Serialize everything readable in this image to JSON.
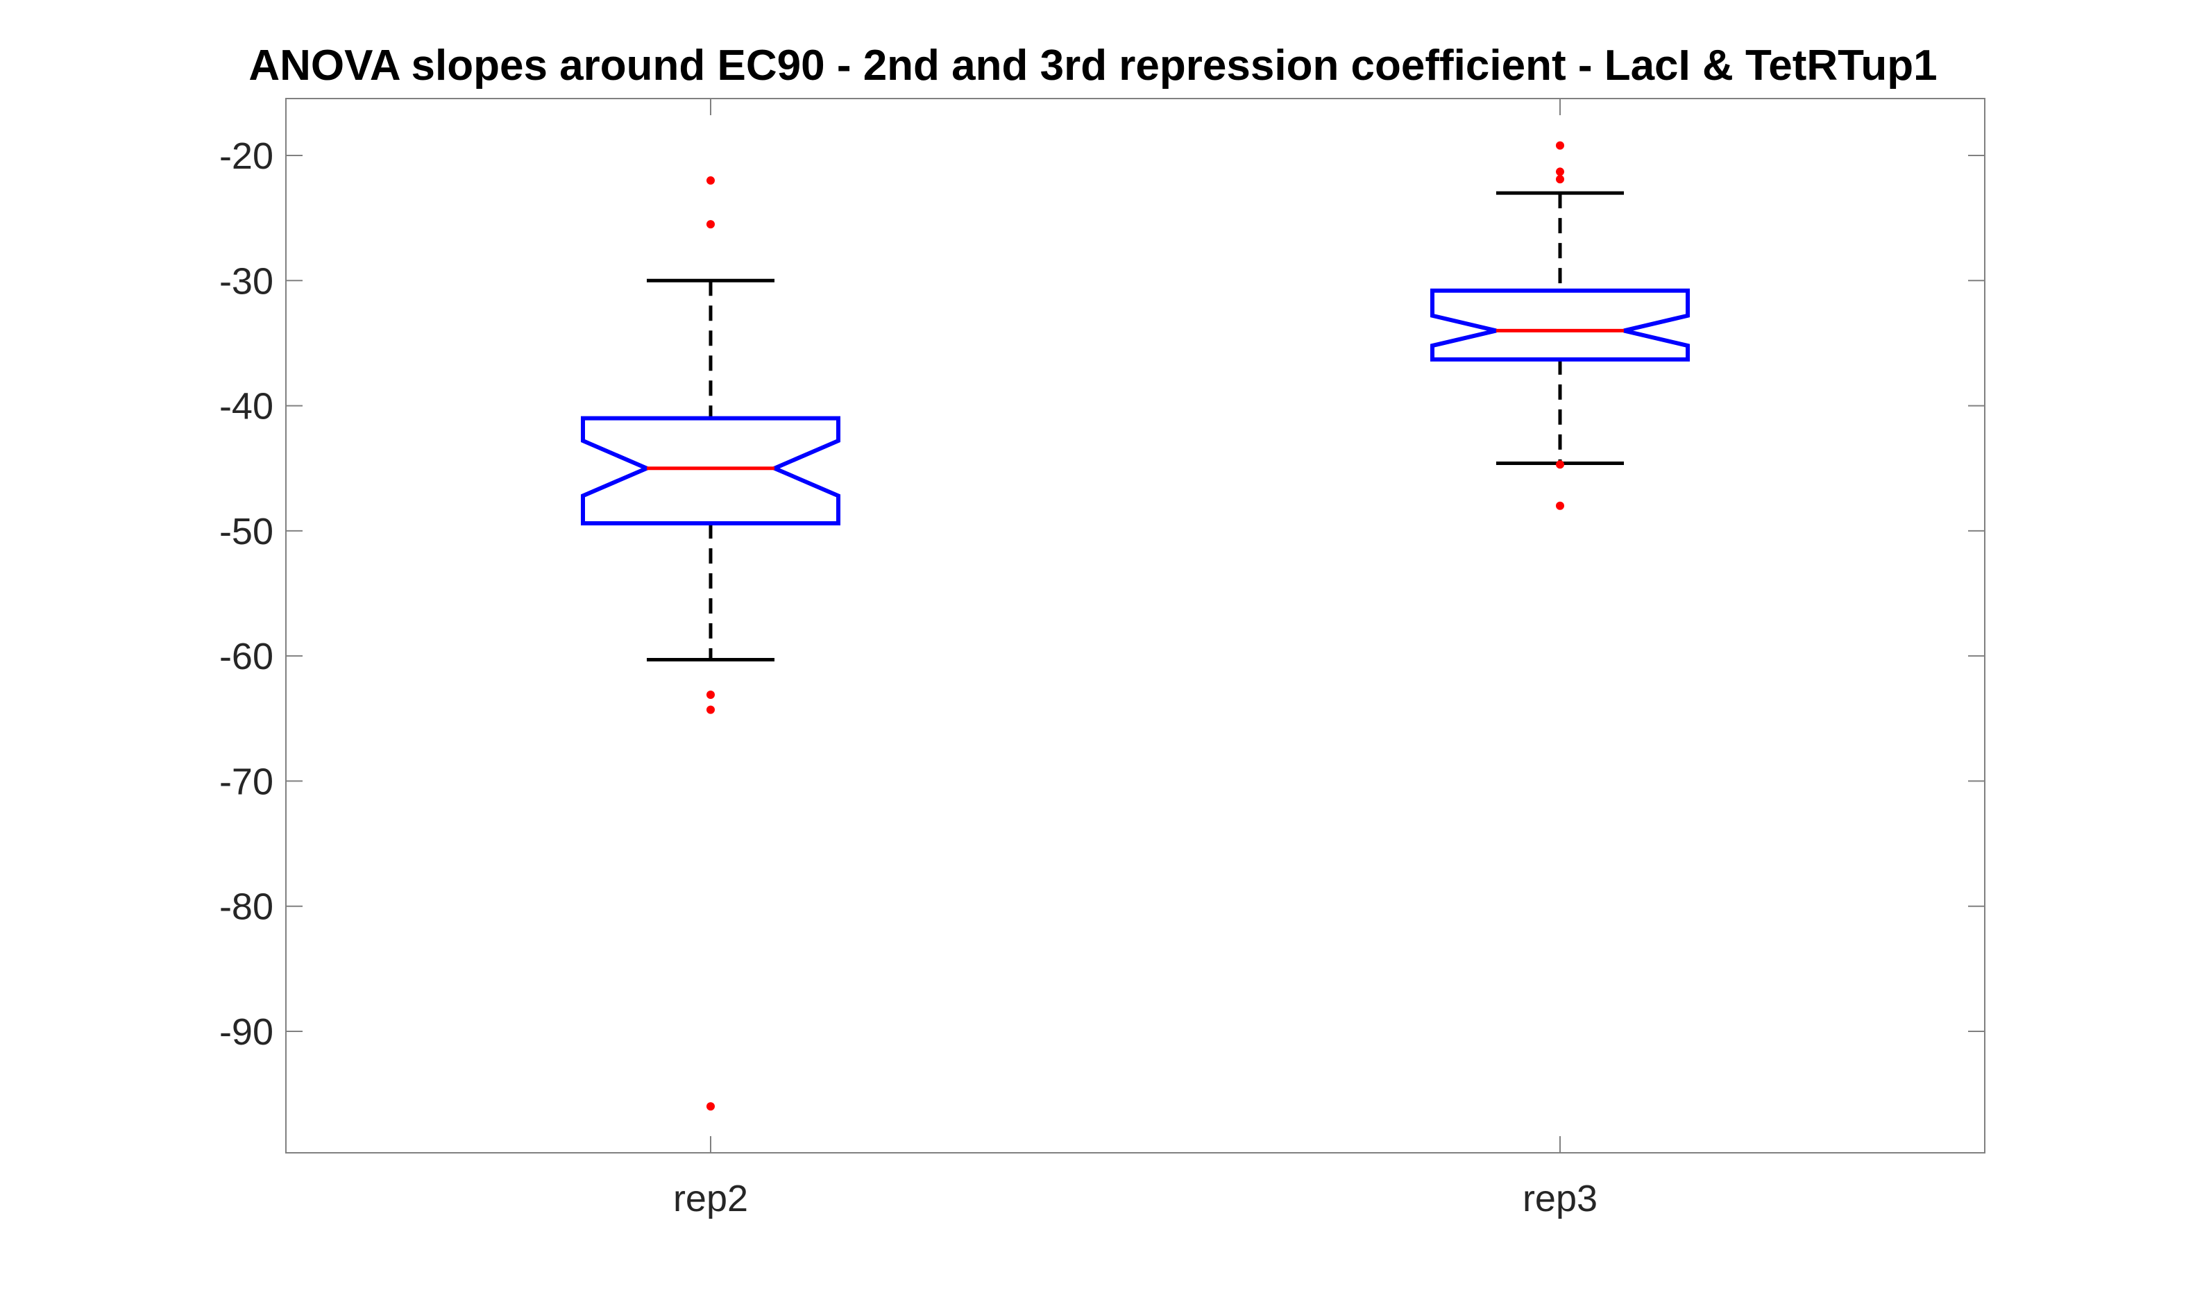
{
  "chart_data": {
    "type": "box",
    "title": "ANOVA slopes around EC90 - 2nd and 3rd repression coefficient - LacI & TetRTup1",
    "xlabel": "",
    "ylabel": "",
    "categories": [
      "rep2",
      "rep3"
    ],
    "ylim": [
      -100,
      -15
    ],
    "yticks": [
      -20,
      -30,
      -40,
      -50,
      -60,
      -70,
      -80,
      -90
    ],
    "grid": false,
    "notched": true,
    "boxes": [
      {
        "category": "rep2",
        "whisker_high": -30,
        "q3": -41,
        "notch_high": -42.8,
        "median": -45,
        "notch_low": -47.2,
        "q1": -49.4,
        "whisker_low": -60.3,
        "outliers": [
          -22,
          -25.5,
          -63.1,
          -64.3,
          -96
        ]
      },
      {
        "category": "rep3",
        "whisker_high": -23,
        "q3": -30.8,
        "notch_high": -32.8,
        "median": -34,
        "notch_low": -35.2,
        "q1": -36.3,
        "whisker_low": -44.6,
        "outliers": [
          -19.2,
          -21.3,
          -21.9,
          -44.7,
          -48
        ]
      }
    ],
    "colors": {
      "box": "#0000ff",
      "median": "#ff0000",
      "whisker": "#000000",
      "outlier": "#ff0000",
      "axis": "#808080",
      "tick_text": "#262626"
    }
  }
}
